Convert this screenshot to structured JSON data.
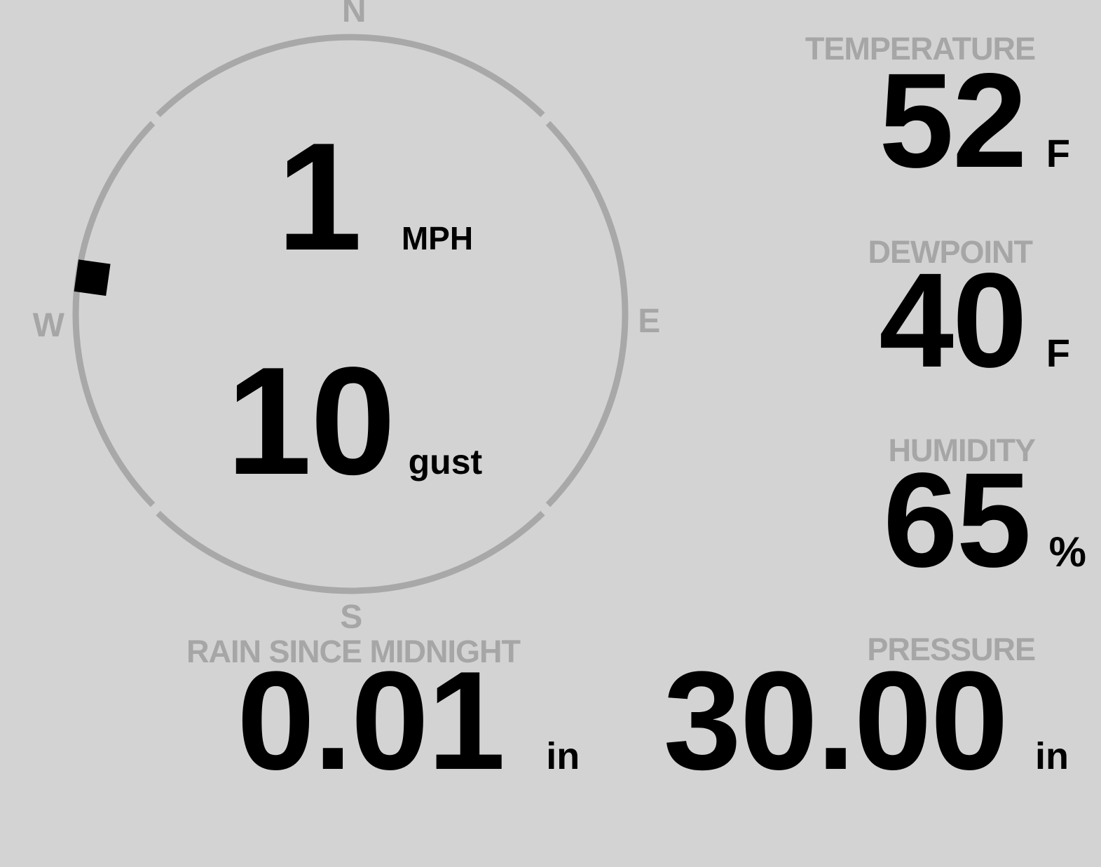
{
  "theme": {
    "background": "#d3d3d3",
    "muted_gray": "#a6a6a6",
    "ring_gray": "#a8a8a8",
    "value_black": "#000000"
  },
  "compass": {
    "cardinals": {
      "north": "N",
      "east": "E",
      "south": "S",
      "west": "W"
    },
    "wind_direction_deg": 278
  },
  "wind": {
    "speed_value": "1",
    "speed_unit": "MPH",
    "gust_value": "10",
    "gust_unit": "gust"
  },
  "metrics": {
    "temperature": {
      "label": "TEMPERATURE",
      "value": "52",
      "unit": "F"
    },
    "dewpoint": {
      "label": "DEWPOINT",
      "value": "40",
      "unit": "F"
    },
    "humidity": {
      "label": "HUMIDITY",
      "value": "65",
      "unit": "%"
    },
    "rain": {
      "label": "RAIN SINCE MIDNIGHT",
      "value": "0.01",
      "unit": "in"
    },
    "pressure": {
      "label": "PRESSURE",
      "value": "30.00",
      "unit": "in"
    }
  }
}
